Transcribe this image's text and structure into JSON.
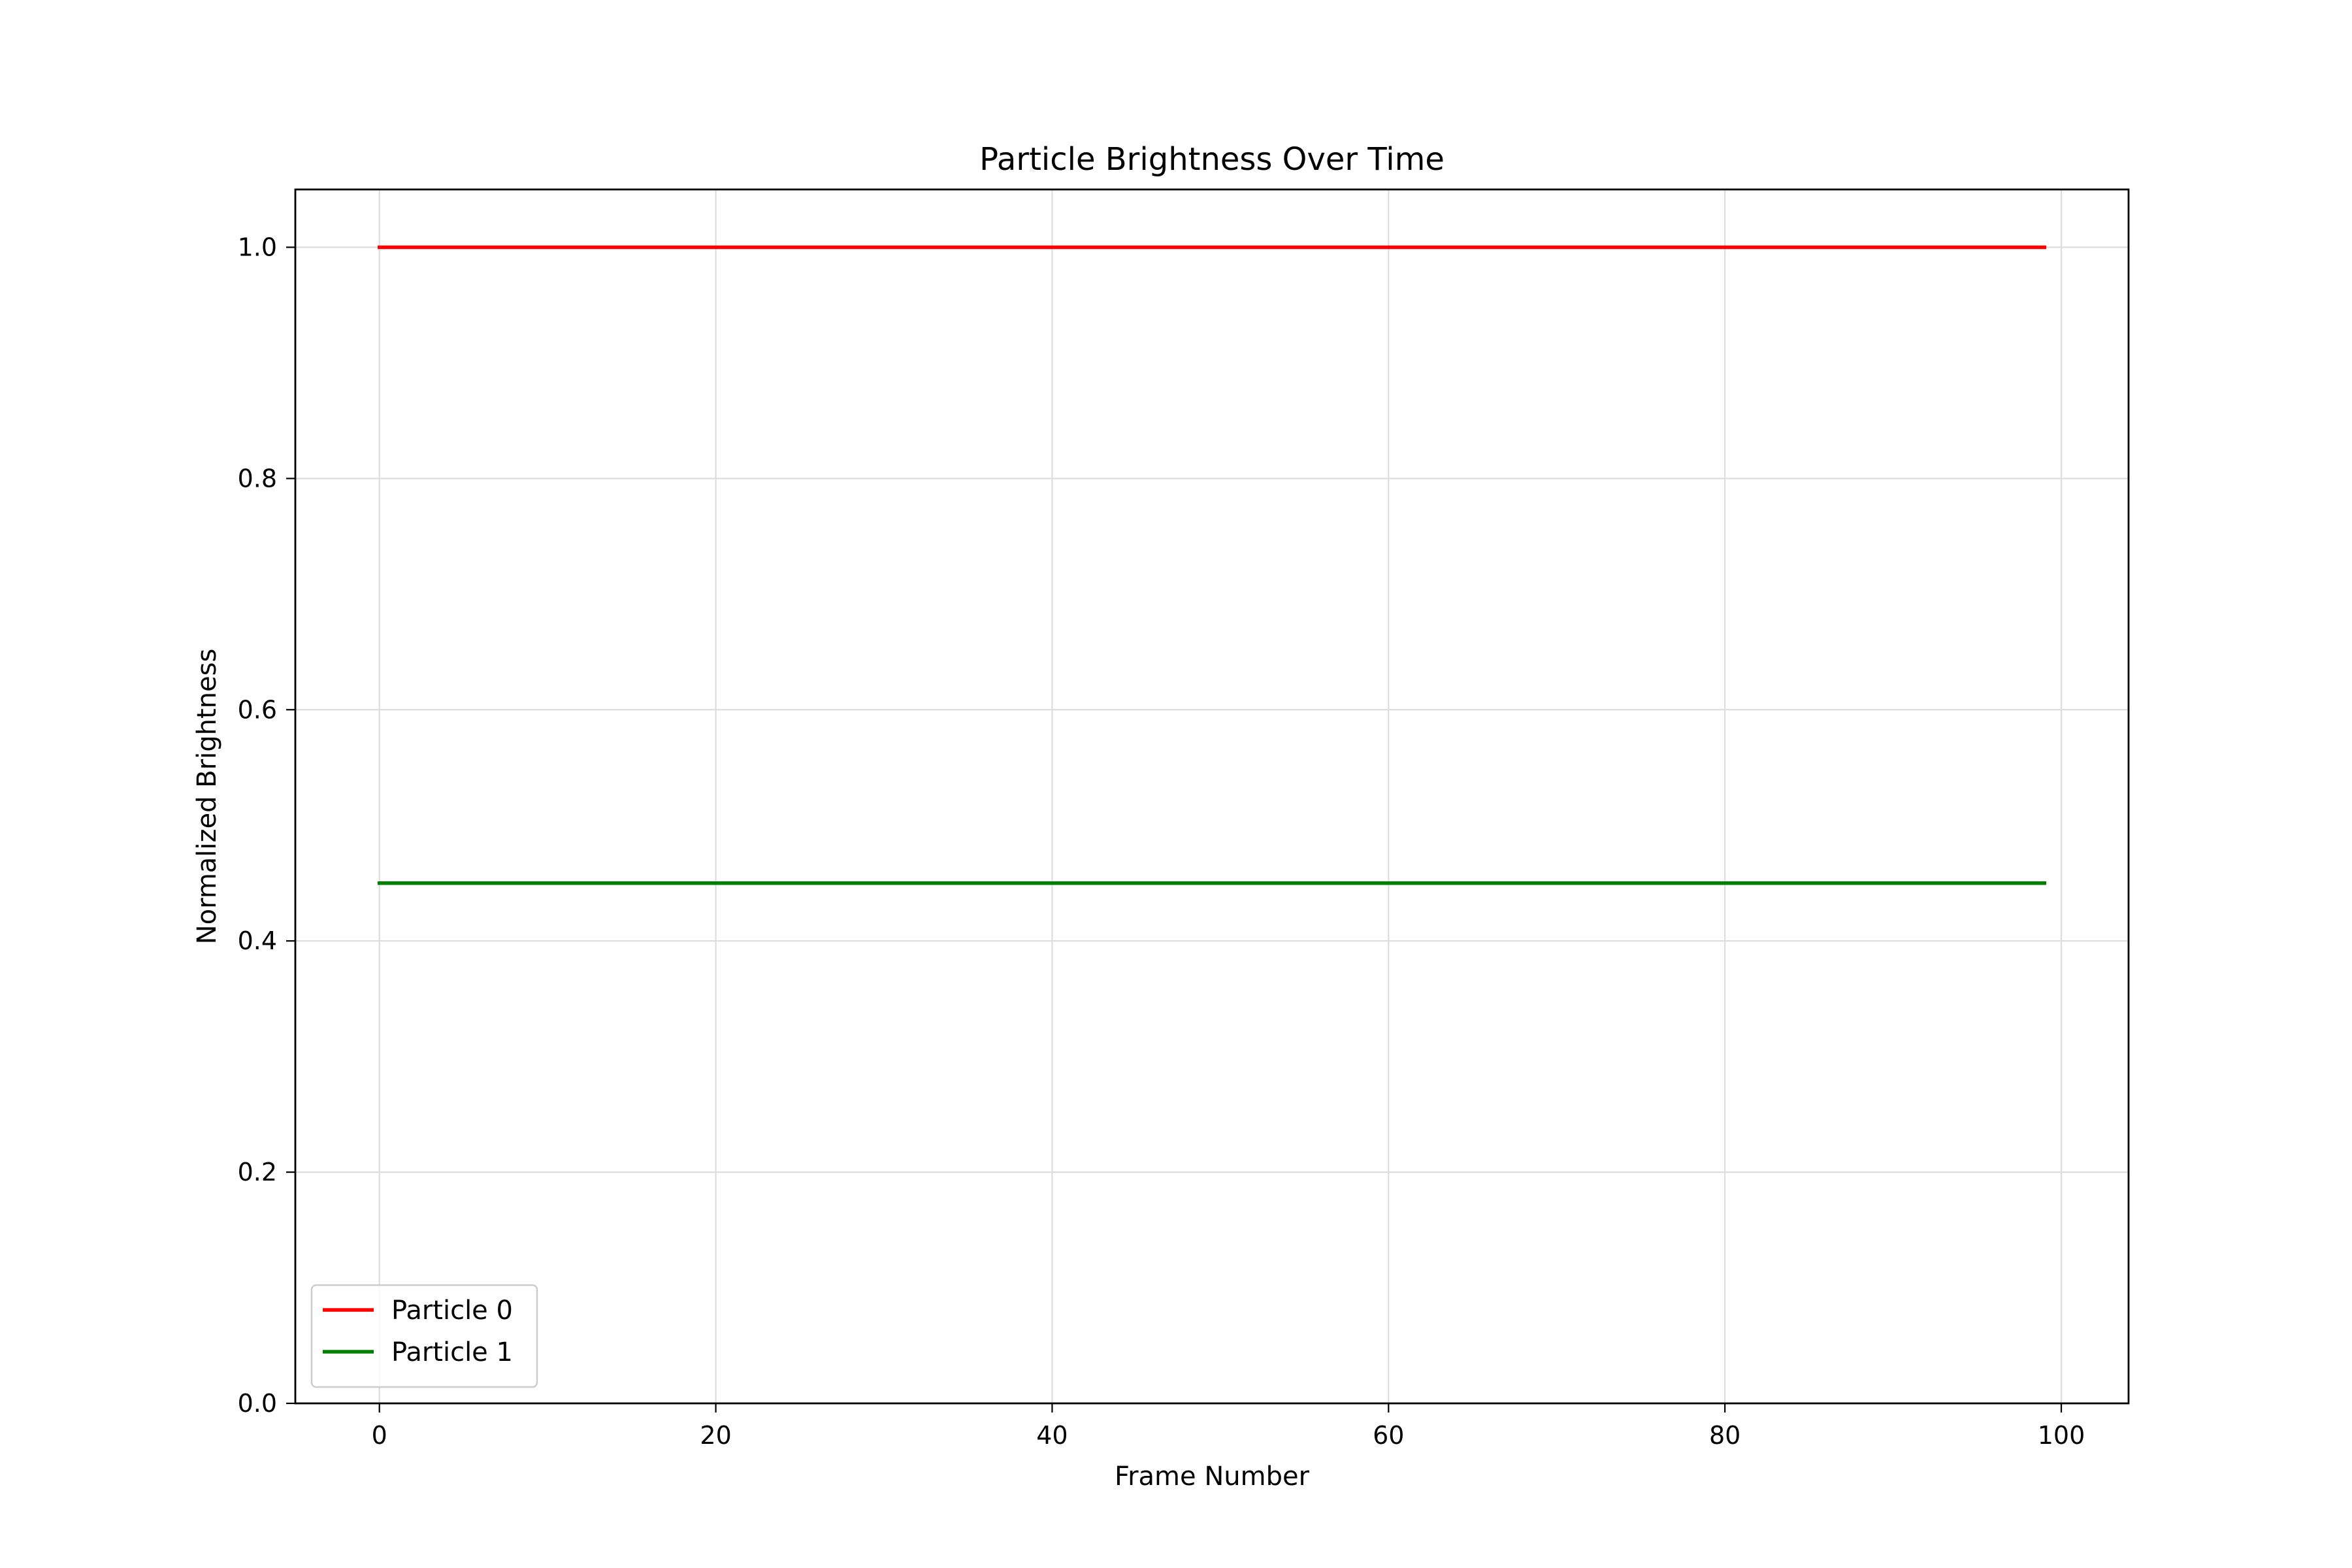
{
  "chart_data": {
    "type": "line",
    "title": "Particle Brightness Over Time",
    "xlabel": "Frame Number",
    "ylabel": "Normalized Brightness",
    "xlim": [
      -5,
      104
    ],
    "ylim": [
      0.0,
      1.05
    ],
    "x_ticks": [
      0,
      20,
      40,
      60,
      80,
      100
    ],
    "x_tick_labels": [
      "0",
      "20",
      "40",
      "60",
      "80",
      "100"
    ],
    "y_ticks": [
      0.0,
      0.2,
      0.4,
      0.6,
      0.8,
      1.0
    ],
    "y_tick_labels": [
      "0.0",
      "0.2",
      "0.4",
      "0.6",
      "0.8",
      "1.0"
    ],
    "grid": true,
    "legend_position": "lower-left",
    "series": [
      {
        "name": "Particle 0",
        "color": "#ff0000",
        "x": [
          0,
          99
        ],
        "y": [
          1.0,
          1.0
        ]
      },
      {
        "name": "Particle 1",
        "color": "#008000",
        "x": [
          0,
          99
        ],
        "y": [
          0.45,
          0.45
        ]
      }
    ]
  }
}
